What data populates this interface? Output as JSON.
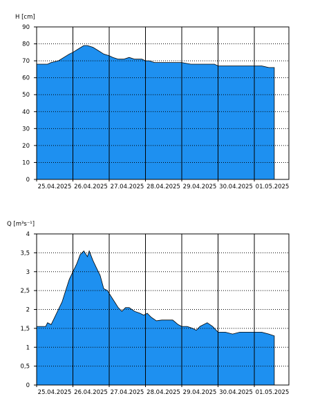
{
  "colors": {
    "fill": "#1e90f0",
    "line": "#000000",
    "background": "#ffffff"
  },
  "chart_data": [
    {
      "type": "area",
      "ylabel": "H [cm]",
      "ylim": [
        0,
        90
      ],
      "yticks": [
        0,
        10,
        20,
        30,
        40,
        50,
        60,
        70,
        80,
        90
      ],
      "yticklabels": [
        "0",
        "10",
        "20",
        "30",
        "40",
        "50",
        "60",
        "70",
        "80",
        "90"
      ],
      "xlim": [
        0,
        7
      ],
      "xticks": [
        0,
        1,
        2,
        3,
        4,
        5,
        6
      ],
      "xticklabels": [
        "25.04.2025",
        "26.04.2025",
        "27.04.2025",
        "28.04.2025",
        "29.04.2025",
        "30.04.2025",
        "01.05.2025"
      ],
      "grid": true,
      "series": [
        {
          "x": [
            0.0,
            0.3,
            0.4,
            0.6,
            0.75,
            0.9,
            1.0,
            1.15,
            1.3,
            1.4,
            1.55,
            1.7,
            1.85,
            2.0,
            2.1,
            2.25,
            2.4,
            2.55,
            2.7,
            2.9,
            3.0,
            3.1,
            3.25,
            3.5,
            3.75,
            4.0,
            4.25,
            4.5,
            4.7,
            4.9,
            5.0,
            5.2,
            5.4,
            5.6,
            5.8,
            6.0,
            6.2,
            6.4,
            6.55
          ],
          "y": [
            68,
            68,
            69,
            70,
            72,
            74,
            75,
            77,
            79,
            79,
            78,
            76,
            74,
            73,
            72,
            71,
            71,
            72,
            71,
            71,
            70,
            70,
            69,
            69,
            69,
            69,
            68,
            68,
            68,
            68,
            67,
            67,
            67,
            67,
            67,
            67,
            67,
            66,
            66
          ]
        }
      ]
    },
    {
      "type": "area",
      "ylabel": "Q [m³s⁻¹]",
      "ylim": [
        0,
        4
      ],
      "yticks": [
        0,
        0.5,
        1,
        1.5,
        2,
        2.5,
        3,
        3.5,
        4
      ],
      "yticklabels": [
        "0",
        "0,5",
        "1",
        "1,5",
        "2",
        "2,5",
        "3",
        "3,5",
        "4"
      ],
      "xlim": [
        0,
        7
      ],
      "xticks": [
        0,
        1,
        2,
        3,
        4,
        5,
        6
      ],
      "xticklabels": [
        "25.04.2025",
        "26.04.2025",
        "27.04.2025",
        "28.04.2025",
        "29.04.2025",
        "30.04.2025",
        "01.05.2025"
      ],
      "grid": true,
      "series": [
        {
          "x": [
            0.0,
            0.25,
            0.3,
            0.4,
            0.5,
            0.6,
            0.7,
            0.8,
            0.9,
            1.0,
            1.1,
            1.2,
            1.3,
            1.4,
            1.45,
            1.55,
            1.65,
            1.75,
            1.85,
            1.95,
            2.05,
            2.15,
            2.25,
            2.35,
            2.45,
            2.55,
            2.7,
            2.85,
            2.95,
            3.05,
            3.15,
            3.3,
            3.45,
            3.6,
            3.75,
            3.9,
            4.0,
            4.15,
            4.3,
            4.4,
            4.5,
            4.7,
            4.85,
            5.0,
            5.2,
            5.4,
            5.6,
            5.8,
            6.0,
            6.2,
            6.4,
            6.55
          ],
          "y": [
            1.55,
            1.55,
            1.65,
            1.6,
            1.8,
            2.0,
            2.2,
            2.5,
            2.8,
            3.0,
            3.2,
            3.45,
            3.55,
            3.4,
            3.55,
            3.3,
            3.1,
            2.9,
            2.55,
            2.5,
            2.35,
            2.2,
            2.05,
            1.95,
            2.05,
            2.05,
            1.95,
            1.9,
            1.85,
            1.9,
            1.8,
            1.7,
            1.72,
            1.72,
            1.72,
            1.6,
            1.55,
            1.55,
            1.5,
            1.45,
            1.55,
            1.65,
            1.55,
            1.4,
            1.4,
            1.35,
            1.4,
            1.4,
            1.4,
            1.4,
            1.35,
            1.3
          ]
        }
      ]
    }
  ]
}
